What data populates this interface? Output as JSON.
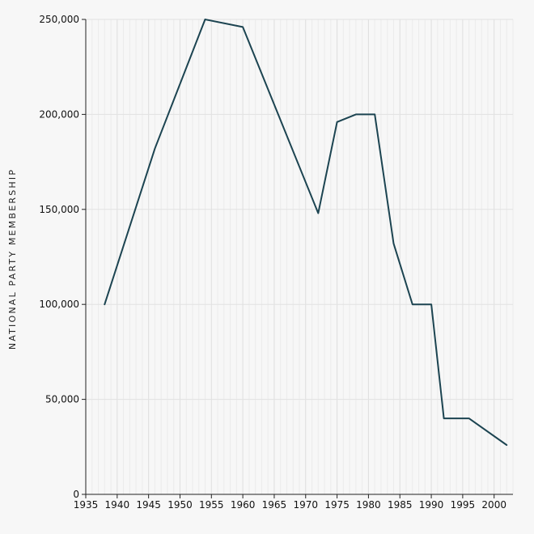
{
  "chart_data": {
    "type": "line",
    "title": "",
    "xlabel": "",
    "ylabel": "NATIONAL PARTY MEMBERSHIP",
    "xlim": [
      1935,
      2003
    ],
    "ylim": [
      0,
      250000
    ],
    "x_ticks": [
      1935,
      1940,
      1945,
      1950,
      1955,
      1960,
      1965,
      1970,
      1975,
      1980,
      1985,
      1990,
      1995,
      2000
    ],
    "x_tick_labels": [
      "1935",
      "1940",
      "1945",
      "1950",
      "1955",
      "1960",
      "1965",
      "1970",
      "1975",
      "1980",
      "1985",
      "1990",
      "1995",
      "2000"
    ],
    "y_ticks": [
      0,
      50000,
      100000,
      150000,
      200000,
      250000
    ],
    "y_tick_labels": [
      "0",
      "50,000",
      "100,000",
      "150,000",
      "200,000",
      "250,000"
    ],
    "grid": true,
    "line_color": "#1c4451",
    "series": [
      {
        "x": [
          1938,
          1946,
          1954,
          1960,
          1972,
          1975,
          1978,
          1981,
          1984,
          1987,
          1990,
          1992,
          1996,
          2002
        ],
        "y": [
          100000,
          182000,
          250000,
          246000,
          148000,
          196000,
          200000,
          200000,
          132000,
          100000,
          100000,
          40000,
          40000,
          26000
        ]
      }
    ]
  }
}
